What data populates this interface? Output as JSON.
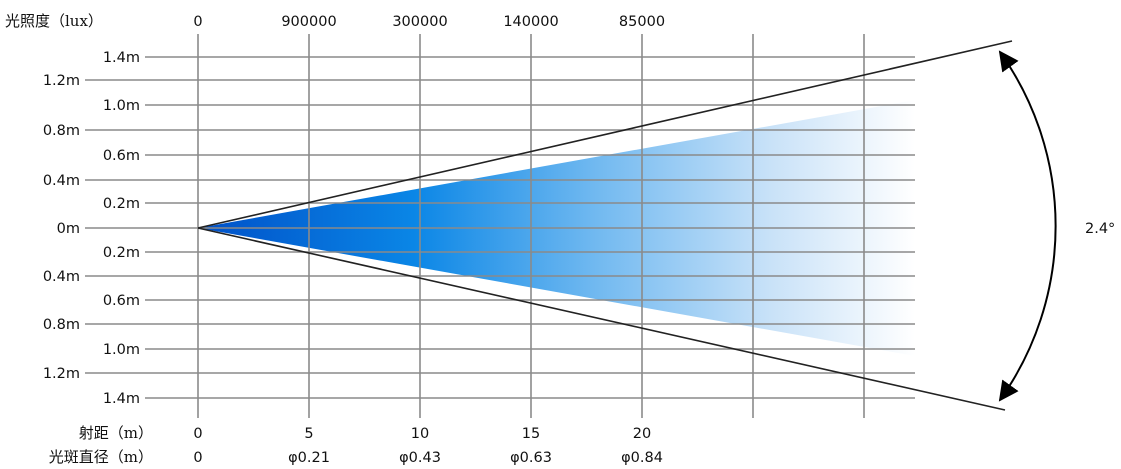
{
  "header": {
    "lux_label": "光照度（lux）",
    "lux_values": [
      "0",
      "900000",
      "300000",
      "140000",
      "85000"
    ]
  },
  "y_axis": {
    "left_labels": [
      "1.2m",
      "0.8m",
      "0.4m",
      "0m",
      "0.4m",
      "0.8m",
      "1.2m"
    ],
    "inner_labels": [
      "1.4m",
      "1.0m",
      "0.6m",
      "0.2m",
      "0.2m",
      "0.6m",
      "1.0m",
      "1.4m"
    ]
  },
  "footer": {
    "distance_label": "射距（m）",
    "distance_values": [
      "0",
      "5",
      "10",
      "15",
      "20"
    ],
    "diameter_label": "光斑直径（m）",
    "diameter_values": [
      "0",
      "φ0.21",
      "φ0.43",
      "φ0.63",
      "φ0.84"
    ]
  },
  "beam": {
    "angle_label": "2.4°",
    "gradient": [
      "#0050c8",
      "#0a86e6",
      "#6fb8f0",
      "#c9e2f8",
      "#ffffff"
    ]
  }
}
